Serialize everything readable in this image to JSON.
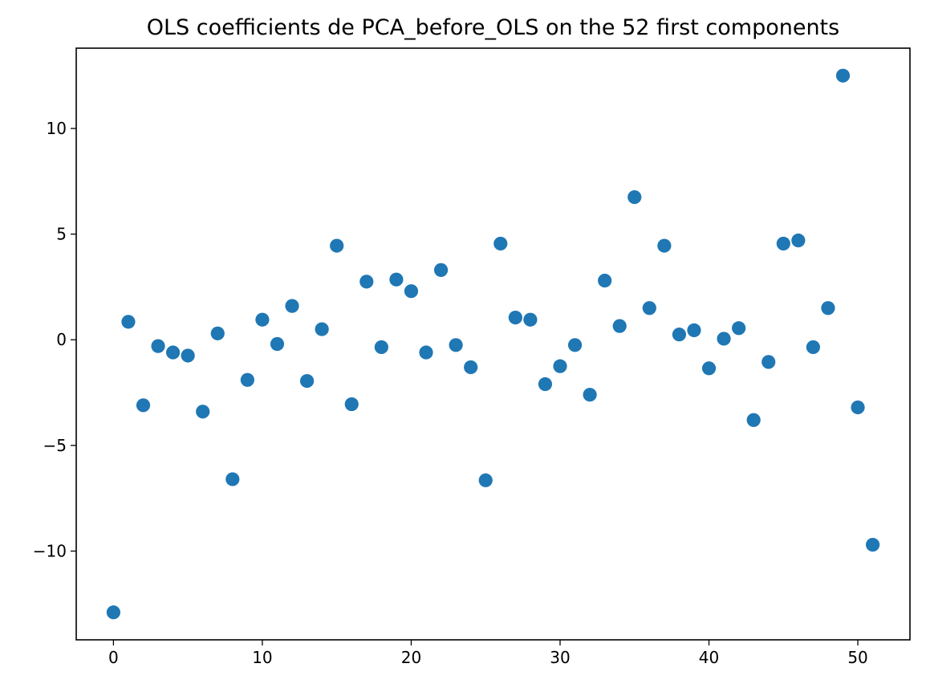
{
  "chart_data": {
    "type": "scatter",
    "title": "OLS  coefficients de PCA_before_OLS on the 52 first components",
    "xlabel": "",
    "ylabel": "",
    "xlim": [
      -2.5,
      53.5
    ],
    "ylim": [
      -14.2,
      13.8
    ],
    "x_ticks": [
      0,
      10,
      20,
      30,
      40,
      50
    ],
    "y_ticks": [
      10,
      5,
      0,
      -5,
      -10
    ],
    "x_tick_labels": [
      "0",
      "10",
      "20",
      "30",
      "40",
      "50"
    ],
    "y_tick_labels": [
      "10",
      "5",
      "0",
      "−5",
      "−10"
    ],
    "grid": false,
    "legend": "none",
    "marker_color": "#1f77b4",
    "points": [
      {
        "x": 0,
        "y": -12.9
      },
      {
        "x": 1,
        "y": 0.85
      },
      {
        "x": 2,
        "y": -3.1
      },
      {
        "x": 3,
        "y": -0.3
      },
      {
        "x": 4,
        "y": -0.6
      },
      {
        "x": 5,
        "y": -0.75
      },
      {
        "x": 6,
        "y": -3.4
      },
      {
        "x": 7,
        "y": 0.3
      },
      {
        "x": 8,
        "y": -6.6
      },
      {
        "x": 9,
        "y": -1.9
      },
      {
        "x": 10,
        "y": 0.95
      },
      {
        "x": 11,
        "y": -0.2
      },
      {
        "x": 12,
        "y": 1.6
      },
      {
        "x": 13,
        "y": -1.95
      },
      {
        "x": 14,
        "y": 0.5
      },
      {
        "x": 15,
        "y": 4.45
      },
      {
        "x": 16,
        "y": -3.05
      },
      {
        "x": 17,
        "y": 2.75
      },
      {
        "x": 18,
        "y": -0.35
      },
      {
        "x": 19,
        "y": 2.85
      },
      {
        "x": 20,
        "y": 2.3
      },
      {
        "x": 21,
        "y": -0.6
      },
      {
        "x": 22,
        "y": 3.3
      },
      {
        "x": 23,
        "y": -0.25
      },
      {
        "x": 24,
        "y": -1.3
      },
      {
        "x": 25,
        "y": -6.65
      },
      {
        "x": 26,
        "y": 4.55
      },
      {
        "x": 27,
        "y": 1.05
      },
      {
        "x": 28,
        "y": 0.95
      },
      {
        "x": 29,
        "y": -2.1
      },
      {
        "x": 30,
        "y": -1.25
      },
      {
        "x": 31,
        "y": -0.25
      },
      {
        "x": 32,
        "y": -2.6
      },
      {
        "x": 33,
        "y": 2.8
      },
      {
        "x": 34,
        "y": 0.65
      },
      {
        "x": 35,
        "y": 6.75
      },
      {
        "x": 36,
        "y": 1.5
      },
      {
        "x": 37,
        "y": 4.45
      },
      {
        "x": 38,
        "y": 0.25
      },
      {
        "x": 39,
        "y": 0.45
      },
      {
        "x": 40,
        "y": -1.35
      },
      {
        "x": 41,
        "y": 0.05
      },
      {
        "x": 42,
        "y": 0.55
      },
      {
        "x": 43,
        "y": -3.8
      },
      {
        "x": 44,
        "y": -1.05
      },
      {
        "x": 45,
        "y": 4.55
      },
      {
        "x": 46,
        "y": 4.7
      },
      {
        "x": 47,
        "y": -0.35
      },
      {
        "x": 48,
        "y": 1.5
      },
      {
        "x": 49,
        "y": 12.5
      },
      {
        "x": 50,
        "y": -3.2
      },
      {
        "x": 51,
        "y": -9.7
      }
    ]
  }
}
